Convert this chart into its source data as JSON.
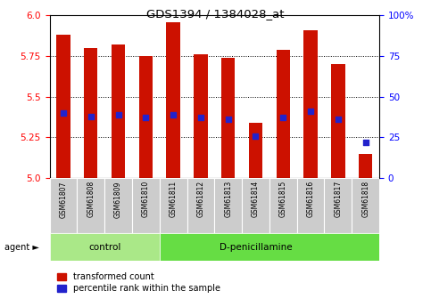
{
  "title": "GDS1394 / 1384028_at",
  "samples": [
    "GSM61807",
    "GSM61808",
    "GSM61809",
    "GSM61810",
    "GSM61811",
    "GSM61812",
    "GSM61813",
    "GSM61814",
    "GSM61815",
    "GSM61816",
    "GSM61817",
    "GSM61818"
  ],
  "transformed_counts": [
    5.88,
    5.8,
    5.82,
    5.75,
    5.96,
    5.76,
    5.74,
    5.34,
    5.79,
    5.91,
    5.7,
    5.15
  ],
  "percentile_ranks": [
    40,
    38,
    39,
    37,
    39,
    37,
    36,
    26,
    37,
    41,
    36,
    22
  ],
  "n_control": 4,
  "n_treatment": 8,
  "control_label": "control",
  "treatment_label": "D-penicillamine",
  "agent_label": "agent",
  "ylim_left": [
    5.0,
    6.0
  ],
  "ylim_right": [
    0,
    100
  ],
  "yticks_left": [
    5.0,
    5.25,
    5.5,
    5.75,
    6.0
  ],
  "yticks_right": [
    0,
    25,
    50,
    75,
    100
  ],
  "bar_color": "#cc1100",
  "dot_color": "#2222cc",
  "control_bg": "#aae888",
  "treatment_bg": "#66dd44",
  "tick_label_bg": "#cccccc",
  "legend_red_label": "transformed count",
  "legend_blue_label": "percentile rank within the sample",
  "bar_width": 0.5
}
